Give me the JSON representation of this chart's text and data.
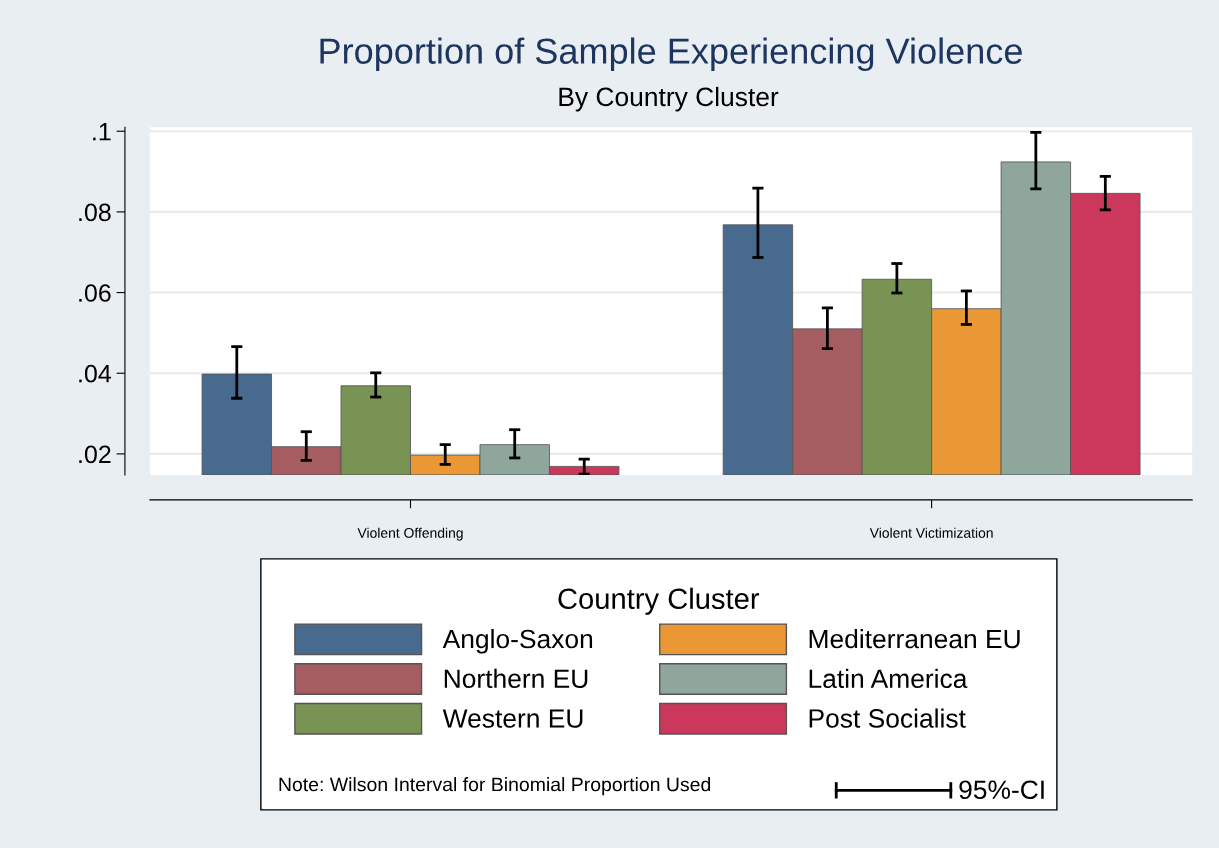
{
  "chart_data": {
    "type": "bar",
    "title": "Proportion of Sample Experiencing Violence",
    "subtitle": "By Country Cluster",
    "categories": [
      "Violent Offending",
      "Violent Victimization"
    ],
    "series": [
      {
        "name": "Anglo-Saxon",
        "color": "#486a8e",
        "values": [
          0.0398,
          0.0768
        ],
        "errors": [
          [
            0.0338,
            0.0466
          ],
          [
            0.0687,
            0.0859
          ]
        ]
      },
      {
        "name": "Northern EU",
        "color": "#a55d61",
        "values": [
          0.0218,
          0.051
        ],
        "errors": [
          [
            0.0184,
            0.0255
          ],
          [
            0.0461,
            0.0562
          ]
        ]
      },
      {
        "name": "Western EU",
        "color": "#799355",
        "values": [
          0.0369,
          0.0633
        ],
        "errors": [
          [
            0.0341,
            0.0401
          ],
          [
            0.0599,
            0.0672
          ]
        ]
      },
      {
        "name": "Mediterranean EU",
        "color": "#ea9836",
        "values": [
          0.0197,
          0.056
        ],
        "errors": [
          [
            0.0174,
            0.0223
          ],
          [
            0.0521,
            0.0604
          ]
        ]
      },
      {
        "name": "Latin America",
        "color": "#8ea69b",
        "values": [
          0.0223,
          0.0924
        ],
        "errors": [
          [
            0.019,
            0.026
          ],
          [
            0.0857,
            0.0997
          ]
        ]
      },
      {
        "name": "Post Socialist",
        "color": "#cc385b",
        "values": [
          0.0169,
          0.0846
        ],
        "errors": [
          [
            0.015,
            0.0187
          ],
          [
            0.0805,
            0.0888
          ]
        ]
      }
    ],
    "ylim": [
      0.0148,
      0.101
    ],
    "yticks": [
      {
        "value": 0.02,
        "label": ".02"
      },
      {
        "value": 0.04,
        "label": ".04"
      },
      {
        "value": 0.06,
        "label": ".06"
      },
      {
        "value": 0.08,
        "label": ".08"
      },
      {
        "value": 0.1,
        "label": ".1"
      }
    ],
    "grid": "y",
    "legend": "bottom",
    "legend_title": "Country Cluster",
    "annotations": [
      "Note: Wilson Interval for Binomial Proportion Used",
      "95%-CI"
    ]
  }
}
